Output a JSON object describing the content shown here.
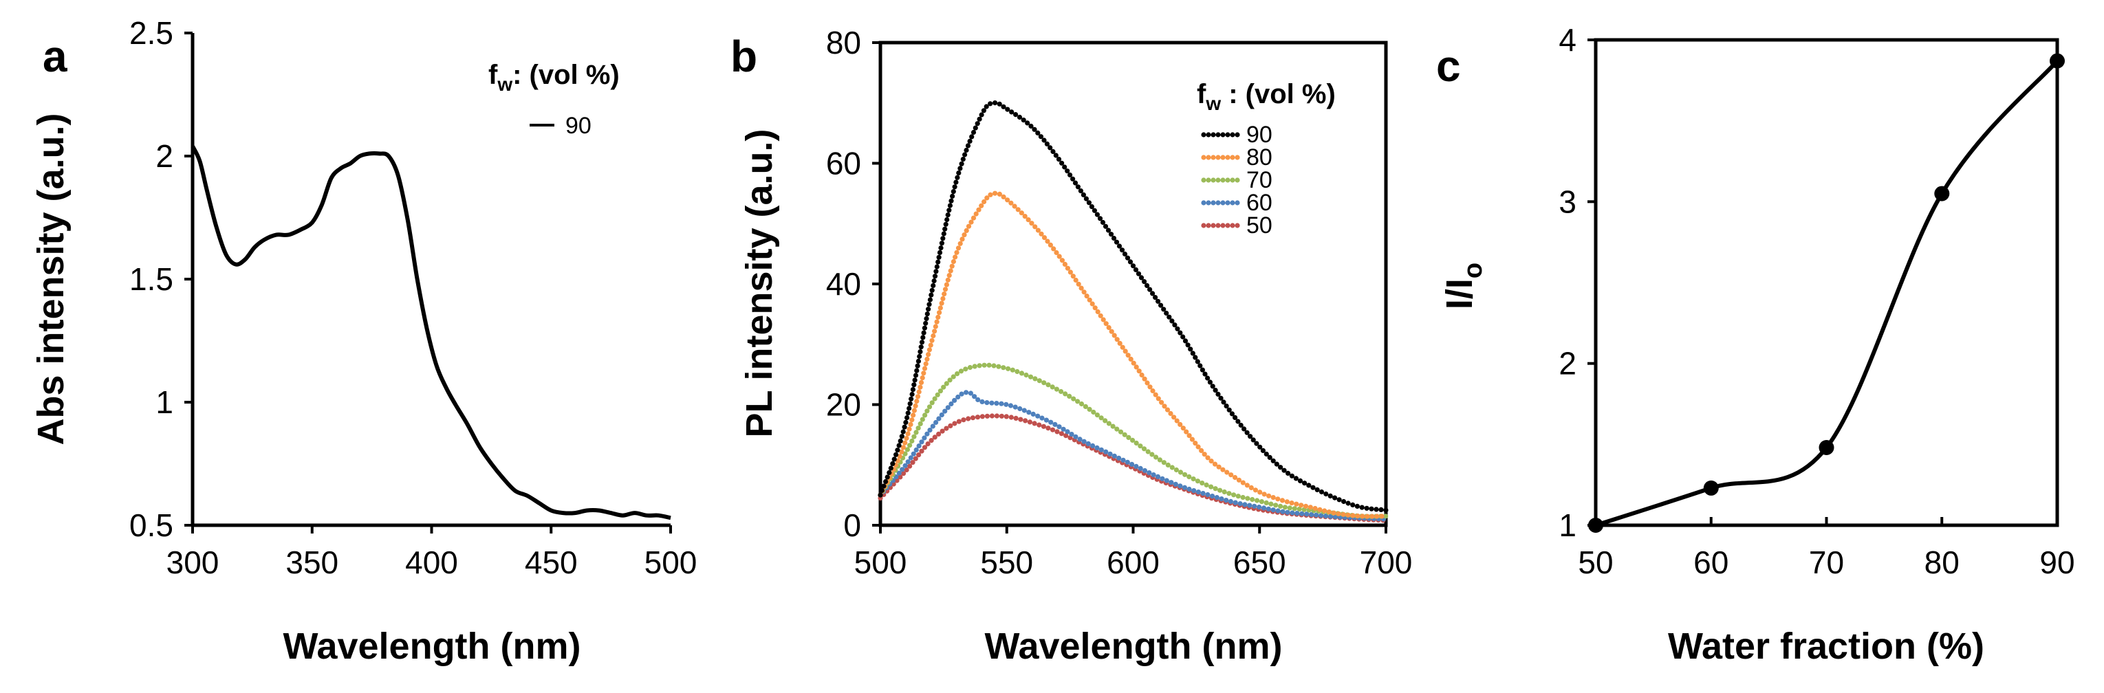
{
  "chart_data": [
    {
      "panel": "a",
      "type": "line",
      "xlabel": "Wavelength (nm)",
      "ylabel": "Abs intensity (a.u.)",
      "xlim": [
        300,
        500
      ],
      "ylim": [
        0.5,
        2.5
      ],
      "xticks": [
        300,
        350,
        400,
        450,
        500
      ],
      "yticks": [
        0.5,
        1,
        1.5,
        2,
        2.5
      ],
      "xtick_labels": [
        "300",
        "350",
        "400",
        "450",
        "500"
      ],
      "ytick_labels": [
        "0.5",
        "1",
        "1.5",
        "2",
        "2.5"
      ],
      "legend_title": "f",
      "legend_title_sub": "w",
      "legend_title_rest": ": (vol %)",
      "series": [
        {
          "name": "90",
          "color": "#000000",
          "style": "solid",
          "x": [
            300,
            303,
            306,
            310,
            314,
            318,
            322,
            326,
            330,
            335,
            340,
            345,
            350,
            354,
            358,
            362,
            366,
            370,
            374,
            378,
            382,
            386,
            390,
            394,
            398,
            402,
            406,
            410,
            415,
            420,
            425,
            430,
            435,
            440,
            445,
            450,
            455,
            460,
            465,
            470,
            475,
            480,
            485,
            490,
            495,
            500
          ],
          "y": [
            2.04,
            1.98,
            1.86,
            1.71,
            1.6,
            1.56,
            1.58,
            1.63,
            1.66,
            1.68,
            1.68,
            1.7,
            1.73,
            1.8,
            1.91,
            1.95,
            1.97,
            2.0,
            2.01,
            2.01,
            2.0,
            1.92,
            1.74,
            1.5,
            1.3,
            1.15,
            1.06,
            0.99,
            0.91,
            0.82,
            0.75,
            0.69,
            0.64,
            0.62,
            0.59,
            0.56,
            0.55,
            0.55,
            0.56,
            0.56,
            0.55,
            0.54,
            0.55,
            0.54,
            0.54,
            0.53
          ]
        }
      ]
    },
    {
      "panel": "b",
      "type": "scatter",
      "xlabel": "Wavelength (nm)",
      "ylabel": "PL intensity (a.u.)",
      "xlim": [
        500,
        700
      ],
      "ylim": [
        0,
        80
      ],
      "xticks": [
        500,
        550,
        600,
        650,
        700
      ],
      "yticks": [
        0,
        20,
        40,
        60,
        80
      ],
      "xtick_labels": [
        "500",
        "550",
        "600",
        "650",
        "700"
      ],
      "ytick_labels": [
        "0",
        "20",
        "40",
        "60",
        "80"
      ],
      "legend_title": "f",
      "legend_title_sub": "w",
      "legend_title_rest": " : (vol %)",
      "series": [
        {
          "name": "90",
          "color": "#000000",
          "x": [
            500,
            510,
            520,
            530,
            540,
            545,
            550,
            560,
            570,
            580,
            590,
            600,
            610,
            620,
            630,
            640,
            650,
            660,
            670,
            680,
            690,
            700
          ],
          "y": [
            5,
            17,
            38,
            57,
            68,
            70,
            69,
            66,
            61,
            55,
            49,
            43,
            37,
            31,
            24,
            18,
            13,
            9,
            6.5,
            4.5,
            3,
            2.5
          ]
        },
        {
          "name": "80",
          "color": "#F79646",
          "x": [
            500,
            510,
            520,
            530,
            540,
            545,
            550,
            560,
            570,
            580,
            590,
            600,
            610,
            620,
            630,
            640,
            650,
            660,
            670,
            680,
            690,
            700
          ],
          "y": [
            5,
            14,
            30,
            45,
            53,
            55,
            54,
            50,
            45,
            39,
            33,
            27,
            21,
            16,
            11,
            8,
            5.5,
            4,
            3,
            2,
            1.5,
            1.5
          ]
        },
        {
          "name": "70",
          "color": "#9BBB59",
          "x": [
            500,
            510,
            520,
            530,
            540,
            550,
            560,
            570,
            580,
            590,
            600,
            610,
            620,
            630,
            640,
            650,
            660,
            670,
            680,
            690,
            700
          ],
          "y": [
            5,
            12,
            20,
            25,
            26.5,
            26,
            24.5,
            22.5,
            20,
            17,
            14,
            11,
            8.5,
            6.5,
            5,
            4,
            3,
            2.5,
            2,
            1.5,
            1.5
          ]
        },
        {
          "name": "60",
          "color": "#4F81BD",
          "x": [
            500,
            510,
            520,
            530,
            535,
            540,
            550,
            560,
            570,
            580,
            590,
            600,
            610,
            620,
            630,
            640,
            650,
            660,
            670,
            680,
            690,
            700
          ],
          "y": [
            5,
            10,
            16,
            21,
            22,
            20.5,
            20,
            18.5,
            16.5,
            14,
            12,
            10,
            8,
            6.3,
            5,
            3.8,
            3,
            2.2,
            1.8,
            1.4,
            1.2,
            1
          ]
        },
        {
          "name": "50",
          "color": "#C0504D",
          "x": [
            500,
            510,
            520,
            530,
            540,
            550,
            560,
            570,
            580,
            590,
            600,
            610,
            620,
            630,
            640,
            650,
            660,
            670,
            680,
            690,
            700
          ],
          "y": [
            4.5,
            9,
            14,
            17,
            18,
            18,
            17,
            15.5,
            13.5,
            11.5,
            9.5,
            7.5,
            6,
            4.6,
            3.5,
            2.6,
            2,
            1.6,
            1.3,
            1,
            0.8
          ]
        }
      ]
    },
    {
      "panel": "c",
      "type": "line",
      "xlabel": "Water fraction (%)",
      "ylabel": "I/I",
      "ylabel_sub": "o",
      "xlim": [
        50,
        90
      ],
      "ylim": [
        1,
        4
      ],
      "xticks": [
        50,
        60,
        70,
        80,
        90
      ],
      "yticks": [
        1,
        2,
        3,
        4
      ],
      "xtick_labels": [
        "50",
        "60",
        "70",
        "80",
        "90"
      ],
      "ytick_labels": [
        "1",
        "2",
        "3",
        "4"
      ],
      "series": [
        {
          "name": "I/Io",
          "color": "#000000",
          "x": [
            50,
            60,
            70,
            80,
            90
          ],
          "y": [
            1.0,
            1.23,
            1.48,
            3.05,
            3.87
          ]
        }
      ]
    }
  ],
  "panels": {
    "a": {
      "tag": "a",
      "legend_value": "90"
    },
    "b": {
      "tag": "b"
    },
    "c": {
      "tag": "c"
    }
  }
}
